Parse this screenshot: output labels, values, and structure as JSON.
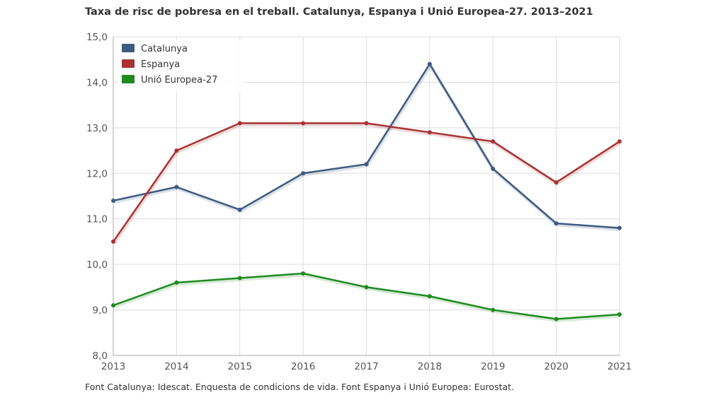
{
  "title": "Taxa de risc de pobresa en el treball. Catalunya, Espanya i Unió Europea-27. 2013–2021",
  "source": "Font Catalunya: Idescat. Enquesta de condicions de vida. Font Espanya i Unió Europea: Eurostat.",
  "chart_data": {
    "type": "line",
    "title": "Taxa de risc de pobresa en el treball. Catalunya, Espanya i Unió Europea-27. 2013–2021",
    "xlabel": "",
    "ylabel": "",
    "x": [
      "2013",
      "2014",
      "2015",
      "2016",
      "2017",
      "2018",
      "2019",
      "2020",
      "2021"
    ],
    "ylim": [
      8.0,
      15.0
    ],
    "yticks": [
      "8,0",
      "9,0",
      "10,0",
      "11,0",
      "12,0",
      "13,0",
      "14,0",
      "15,0"
    ],
    "grid": true,
    "legend_position": "top-left",
    "series": [
      {
        "name": "Catalunya",
        "color": "#3d5a80",
        "values": [
          11.4,
          11.7,
          11.2,
          12.0,
          12.2,
          14.4,
          12.1,
          10.9,
          10.8
        ]
      },
      {
        "name": "Espanya",
        "color": "#a83232",
        "values": [
          10.5,
          12.5,
          13.1,
          13.1,
          13.1,
          12.9,
          12.7,
          11.8,
          12.7
        ]
      },
      {
        "name": "Unió Europea-27",
        "color": "#1f8a1f",
        "values": [
          9.1,
          9.6,
          9.7,
          9.8,
          9.5,
          9.3,
          9.0,
          8.8,
          8.9
        ]
      }
    ]
  }
}
